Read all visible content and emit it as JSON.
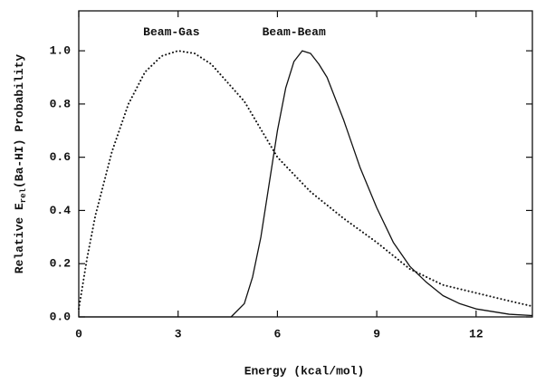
{
  "chart_data": {
    "type": "line",
    "xlabel": "Energy (kcal/mol)",
    "ylabel": {
      "prefix": "Relative E",
      "subscript": "rel",
      "suffix": "(Ba-HI) Probability"
    },
    "xlim": [
      0,
      13.7
    ],
    "ylim": [
      0,
      1.15
    ],
    "xticks": [
      0,
      3,
      6,
      9,
      12
    ],
    "yticks": [
      {
        "value": 0,
        "label": "0.0"
      },
      0.2,
      0.4,
      0.6,
      0.8,
      {
        "value": 1,
        "label": "1.0"
      }
    ],
    "annotations": [
      {
        "text": "Beam-Gas",
        "x": 2.8,
        "y": 1.07
      },
      {
        "text": "Beam-Beam",
        "x": 6.5,
        "y": 1.07
      }
    ],
    "series": [
      {
        "name": "Beam-Gas",
        "color": "#111111",
        "style": "dotted",
        "x": [
          0,
          0.25,
          0.5,
          1,
          1.5,
          2,
          2.5,
          3,
          3.5,
          4,
          5,
          6,
          7,
          8,
          9,
          10,
          11,
          12,
          13,
          13.7
        ],
        "values": [
          0.03,
          0.22,
          0.38,
          0.62,
          0.8,
          0.92,
          0.98,
          1.0,
          0.99,
          0.95,
          0.81,
          0.6,
          0.47,
          0.37,
          0.28,
          0.18,
          0.12,
          0.09,
          0.06,
          0.04
        ]
      },
      {
        "name": "Beam-Beam",
        "color": "#111111",
        "style": "solid",
        "x": [
          0,
          4.6,
          5,
          5.25,
          5.5,
          5.75,
          6,
          6.25,
          6.5,
          6.75,
          7,
          7.25,
          7.5,
          8,
          8.5,
          9,
          9.5,
          10,
          10.5,
          11,
          11.5,
          12,
          13,
          13.7
        ],
        "values": [
          0,
          0,
          0.05,
          0.15,
          0.3,
          0.5,
          0.7,
          0.86,
          0.96,
          1.0,
          0.99,
          0.95,
          0.9,
          0.74,
          0.56,
          0.41,
          0.28,
          0.19,
          0.13,
          0.08,
          0.05,
          0.03,
          0.01,
          0.005
        ]
      }
    ]
  }
}
